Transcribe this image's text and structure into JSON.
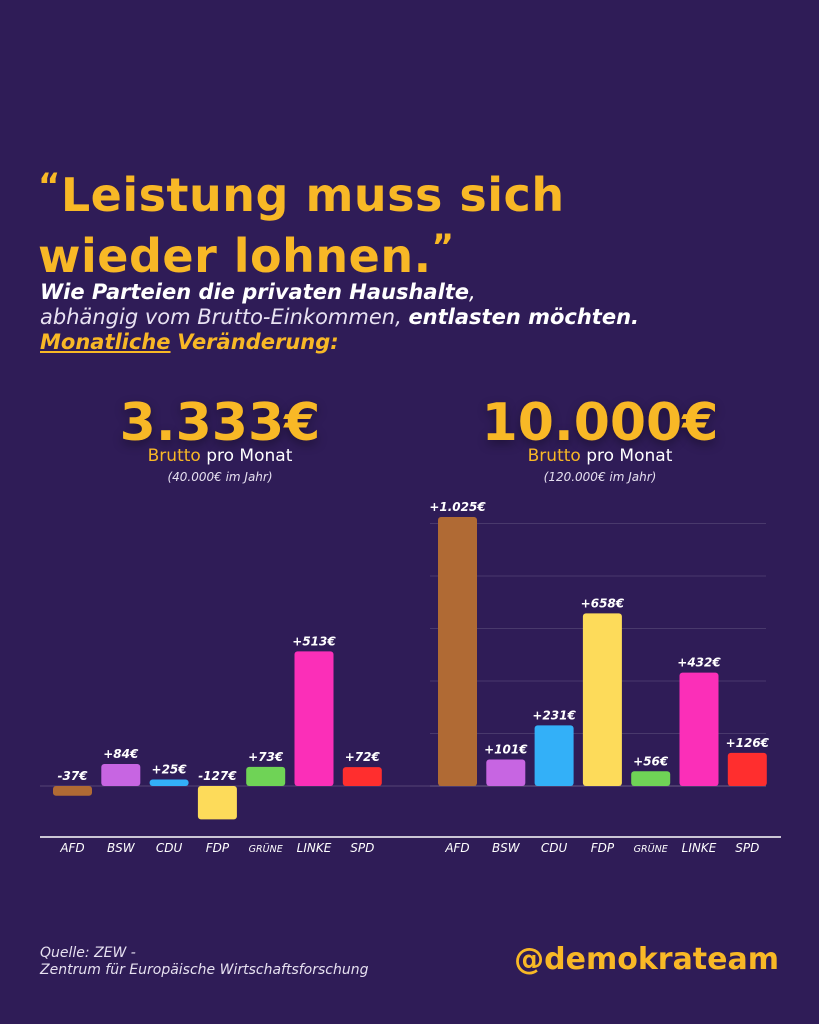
{
  "headline": {
    "open_quote": "“",
    "line1": "Leistung muss sich",
    "line2": "wieder lohnen.",
    "close_quote": "”"
  },
  "subtitle": {
    "line1": "Wie Parteien die privaten Haushalte",
    "line1_comma": ",",
    "line2_a": "abhängig vom Brutto-Einkommen,",
    "line2_b": "entlasten möchten.",
    "line3_a": "Monatliche",
    "line3_b": "Veränderung:"
  },
  "group_left": {
    "amount": "3.333€",
    "brutto": "Brutto",
    "pro_monat": "pro Monat",
    "per_year": "(40.000€ im Jahr)"
  },
  "group_right": {
    "amount": "10.000€",
    "brutto": "Brutto",
    "pro_monat": "pro Monat",
    "per_year": "(120.000€ im Jahr)"
  },
  "chart_data": {
    "type": "bar",
    "categories": [
      "AFD",
      "BSW",
      "CDU",
      "FDP",
      "GRÜNE",
      "LINKE",
      "SPD"
    ],
    "series": [
      {
        "name": "3.333€",
        "values": [
          -37,
          84,
          25,
          -127,
          73,
          513,
          72
        ],
        "labels": [
          "-37€",
          "+84€",
          "+25€",
          "-127€",
          "+73€",
          "+513€",
          "+72€"
        ]
      },
      {
        "name": "10.000€",
        "values": [
          1025,
          101,
          231,
          658,
          56,
          432,
          126
        ],
        "labels": [
          "+1.025€",
          "+101€",
          "+231€",
          "+658€",
          "+56€",
          "+432€",
          "+126€"
        ]
      }
    ],
    "colors": [
      "#b06a34",
      "#c765e2",
      "#33b0f8",
      "#fddb5a",
      "#6fd356",
      "#fb2fb8",
      "#ff2e2e"
    ],
    "ylim": [
      -150,
      1025
    ],
    "grid": true
  },
  "footer": {
    "source_line1": "Quelle: ZEW -",
    "source_line2": "Zentrum für Europäische Wirtschaftsforschung",
    "handle": "@demokrateam"
  }
}
